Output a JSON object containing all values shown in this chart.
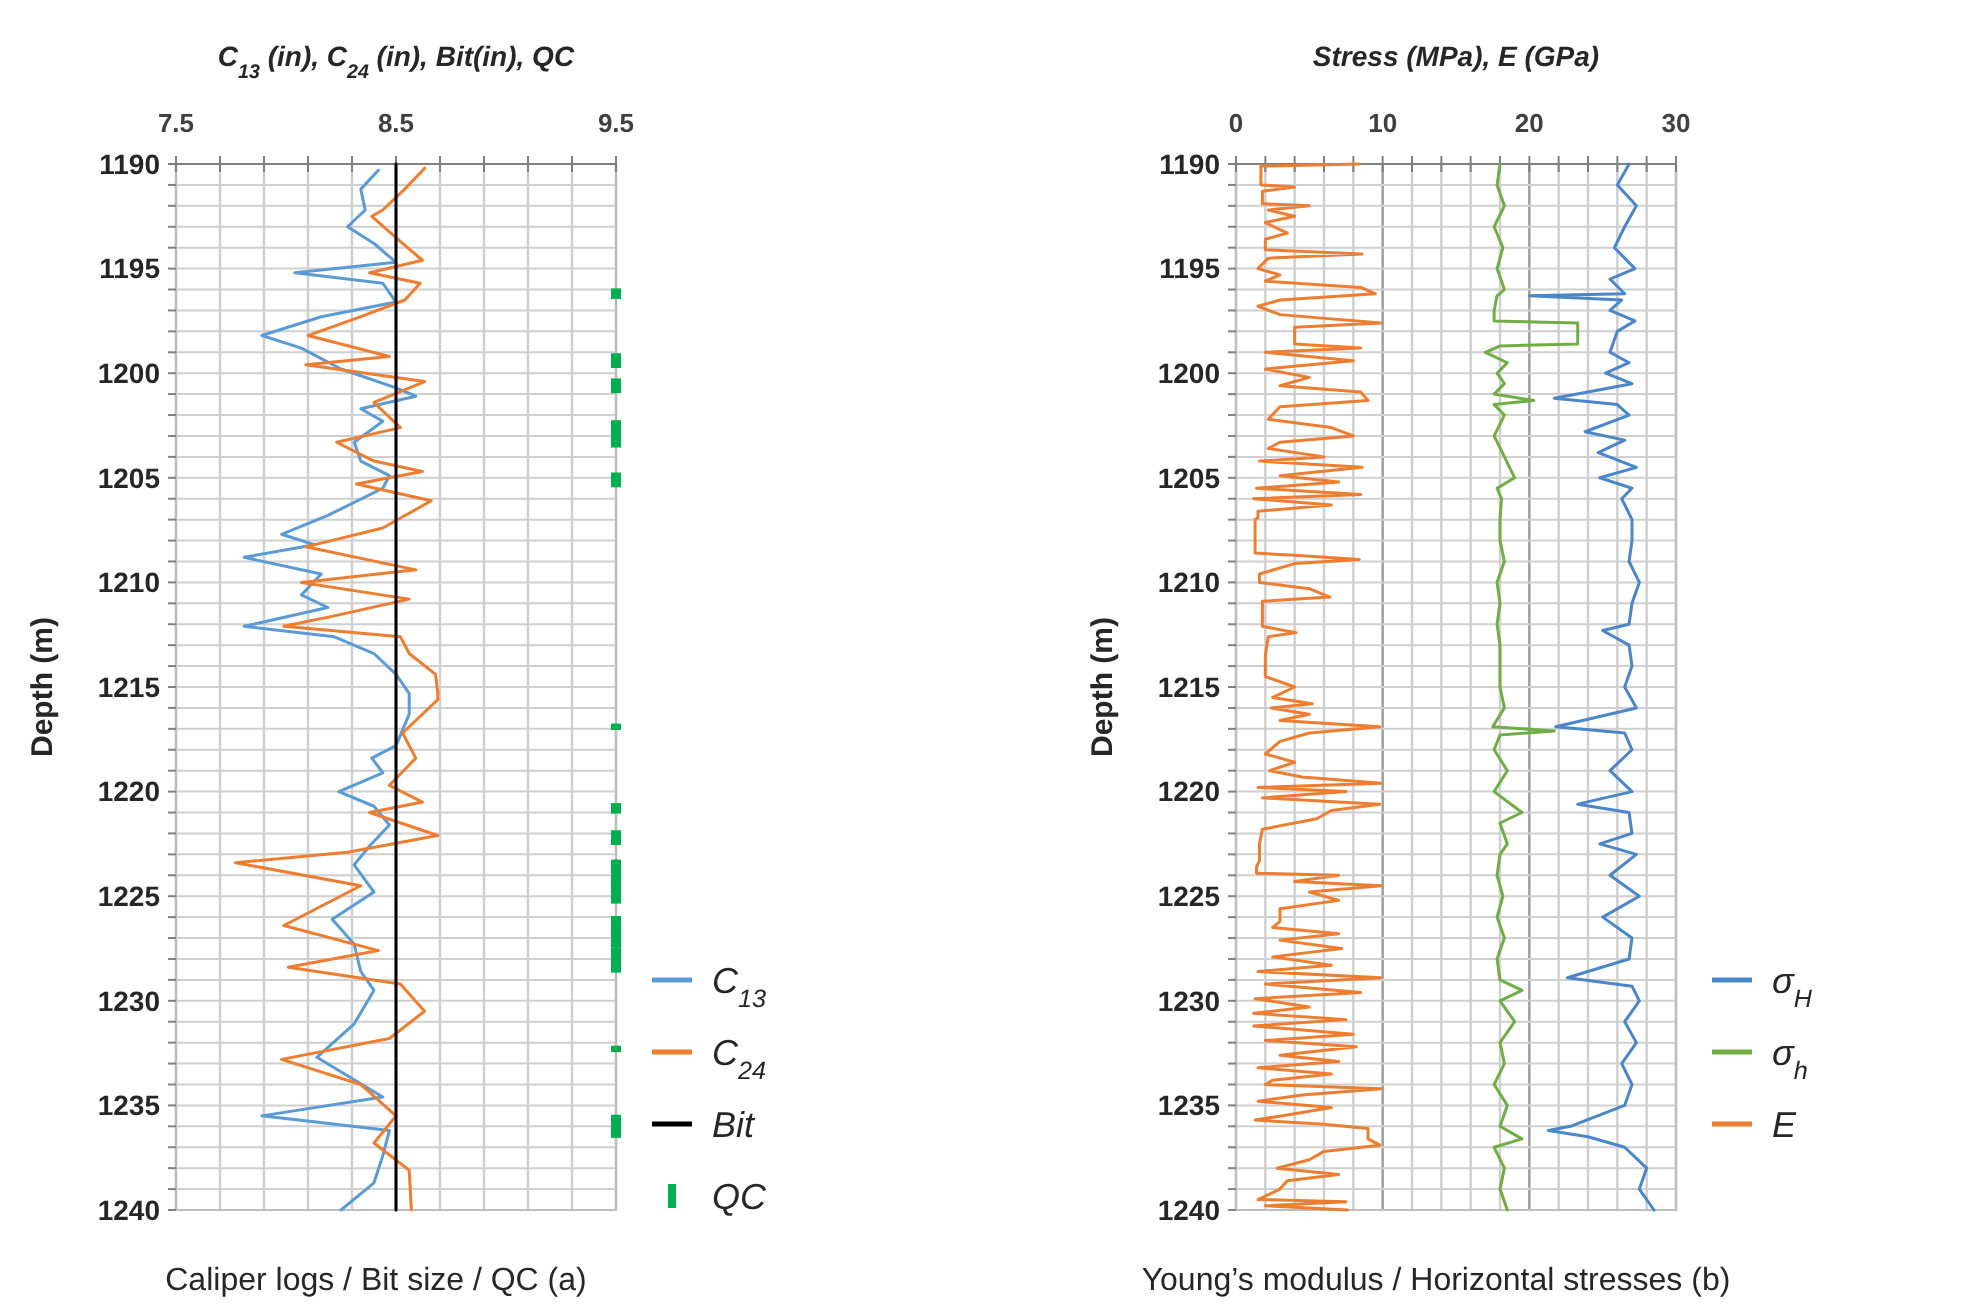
{
  "chart_data": [
    {
      "type": "line",
      "title": "C$_{13}$ (in), C$_{24}$ (in), Bit(in), QC",
      "ylabel": "Depth (m)",
      "xlabel": "Caliper logs / Bit size / QC (a)",
      "xlim": [
        7.5,
        9.5
      ],
      "ylim": [
        1240,
        1190
      ],
      "xticks": [
        7.5,
        {
          "value": 7.7,
          "label": null
        },
        {
          "value": 7.9,
          "label": null
        },
        {
          "value": 8.1,
          "label": null
        },
        {
          "value": 8.3,
          "label": null
        },
        8.5,
        {
          "value": 8.7,
          "label": null
        },
        {
          "value": 8.9,
          "label": null
        },
        {
          "value": 9.1,
          "label": null
        },
        {
          "value": 9.3,
          "label": null
        },
        9.5
      ],
      "yticks": [
        1190,
        {
          "value": 1191,
          "label": null
        },
        {
          "value": 1192,
          "label": null
        },
        {
          "value": 1193,
          "label": null
        },
        {
          "value": 1194,
          "label": null
        },
        1195,
        {
          "value": 1196,
          "label": null
        },
        {
          "value": 1197,
          "label": null
        },
        {
          "value": 1198,
          "label": null
        },
        {
          "value": 1199,
          "label": null
        },
        1200,
        {
          "value": 1201,
          "label": null
        },
        {
          "value": 1202,
          "label": null
        },
        {
          "value": 1203,
          "label": null
        },
        {
          "value": 1204,
          "label": null
        },
        1205,
        {
          "value": 1206,
          "label": null
        },
        {
          "value": 1207,
          "label": null
        },
        {
          "value": 1208,
          "label": null
        },
        {
          "value": 1209,
          "label": null
        },
        1210,
        {
          "value": 1211,
          "label": null
        },
        {
          "value": 1212,
          "label": null
        },
        {
          "value": 1213,
          "label": null
        },
        {
          "value": 1214,
          "label": null
        },
        1215,
        {
          "value": 1216,
          "label": null
        },
        {
          "value": 1217,
          "label": null
        },
        {
          "value": 1218,
          "label": null
        },
        {
          "value": 1219,
          "label": null
        },
        1220,
        {
          "value": 1221,
          "label": null
        },
        {
          "value": 1222,
          "label": null
        },
        {
          "value": 1223,
          "label": null
        },
        {
          "value": 1224,
          "label": null
        },
        1225,
        {
          "value": 1226,
          "label": null
        },
        {
          "value": 1227,
          "label": null
        },
        {
          "value": 1228,
          "label": null
        },
        {
          "value": 1229,
          "label": null
        },
        1230,
        {
          "value": 1231,
          "label": null
        },
        {
          "value": 1232,
          "label": null
        },
        {
          "value": 1233,
          "label": null
        },
        {
          "value": 1234,
          "label": null
        },
        1235,
        {
          "value": 1236,
          "label": null
        },
        {
          "value": 1237,
          "label": null
        },
        {
          "value": 1238,
          "label": null
        },
        {
          "value": 1239,
          "label": null
        },
        1240
      ],
      "grid": true,
      "legend": "right",
      "series": [
        {
          "name": "C$_{13}$",
          "color": "#5b9bd5",
          "x": [
            8.42,
            8.34,
            8.36,
            8.28,
            8.4,
            8.5,
            8.04,
            8.44,
            8.5,
            8.16,
            7.89,
            8.07,
            8.25,
            8.5,
            8.59,
            8.34,
            8.44,
            8.31,
            8.34,
            8.47,
            8.44,
            8.19,
            7.98,
            8.13,
            7.81,
            8.16,
            8.07,
            8.19,
            7.81,
            8.22,
            8.4,
            8.5,
            8.56,
            8.56,
            8.5,
            8.39,
            8.44,
            8.24,
            8.4,
            8.47,
            8.38,
            8.31,
            8.4,
            8.21,
            8.31,
            8.34,
            8.4,
            8.31,
            8.14,
            8.44,
            7.89,
            8.47,
            8.44,
            8.4,
            8.25
          ],
          "values": [
            1190.3,
            1191.2,
            1192.2,
            1193.0,
            1193.8,
            1194.7,
            1195.2,
            1195.7,
            1196.6,
            1197.3,
            1198.2,
            1198.8,
            1199.8,
            1200.7,
            1201.1,
            1201.7,
            1202.3,
            1203.3,
            1204.2,
            1204.9,
            1205.5,
            1206.8,
            1207.7,
            1208.2,
            1208.8,
            1209.6,
            1210.6,
            1211.2,
            1212.1,
            1212.6,
            1213.4,
            1214.4,
            1215.3,
            1216.3,
            1217.8,
            1218.4,
            1219.1,
            1220.0,
            1220.7,
            1221.6,
            1222.6,
            1223.5,
            1224.8,
            1226.1,
            1227.3,
            1228.6,
            1229.5,
            1231.1,
            1232.7,
            1234.6,
            1235.5,
            1236.2,
            1237.4,
            1238.7,
            1240.0
          ]
        },
        {
          "name": "C$_{24}$",
          "color": "#ed7d31",
          "x": [
            8.63,
            8.54,
            8.44,
            8.39,
            8.53,
            8.62,
            8.38,
            8.61,
            8.54,
            8.34,
            8.1,
            8.47,
            8.09,
            8.63,
            8.4,
            8.52,
            8.23,
            8.4,
            8.62,
            8.32,
            8.66,
            8.44,
            8.09,
            8.59,
            8.07,
            8.56,
            8.22,
            7.99,
            8.52,
            8.56,
            8.68,
            8.69,
            8.69,
            8.53,
            8.59,
            8.47,
            8.62,
            8.38,
            8.69,
            8.28,
            7.77,
            8.34,
            7.99,
            8.42,
            8.01,
            8.52,
            8.63,
            8.47,
            7.98,
            8.34,
            8.5,
            8.4,
            8.56,
            8.57
          ],
          "values": [
            1190.2,
            1191.2,
            1192.2,
            1192.5,
            1193.8,
            1194.6,
            1195.2,
            1195.7,
            1196.5,
            1197.3,
            1198.2,
            1199.2,
            1199.6,
            1200.4,
            1201.4,
            1202.6,
            1203.3,
            1204.2,
            1204.7,
            1205.3,
            1206.1,
            1207.4,
            1208.3,
            1209.4,
            1210.0,
            1210.8,
            1211.6,
            1212.1,
            1212.6,
            1213.4,
            1214.4,
            1215.3,
            1215.6,
            1217.2,
            1218.4,
            1219.7,
            1220.5,
            1221.0,
            1222.1,
            1222.9,
            1223.4,
            1224.5,
            1226.4,
            1227.6,
            1228.4,
            1229.2,
            1230.5,
            1231.8,
            1232.8,
            1234.0,
            1235.5,
            1236.8,
            1238.1,
            1240.0
          ]
        },
        {
          "name": "Bit",
          "color": "#000000",
          "x": [
            8.5,
            8.5
          ],
          "values": [
            1190,
            1240
          ]
        },
        {
          "name": "QC",
          "type": "scatter",
          "marker": "square",
          "color": "#00b050",
          "x": [
            9.5,
            9.5,
            9.5,
            9.5,
            9.5,
            9.5,
            9.5,
            9.5,
            9.5,
            9.5,
            9.5,
            9.5,
            9.5,
            9.5,
            9.5,
            9.5,
            9.5,
            9.5,
            9.5,
            9.5,
            9.5,
            9.5,
            9.5,
            9.5,
            9.5,
            9.5,
            9.5,
            9.5,
            9.5,
            9.5,
            9.5,
            9.5,
            9.5,
            9.5,
            9.5,
            9.5,
            9.5,
            9.5,
            9.5,
            9.5,
            9.5,
            9.5,
            9.5,
            9.5,
            9.5,
            9.5,
            9.5,
            9.5,
            9.5,
            9.5,
            9.5
          ],
          "values": [
            1196.1,
            1196.3,
            1199.2,
            1199.4,
            1199.6,
            1200.4,
            1200.6,
            1200.8,
            1202.4,
            1202.6,
            1202.8,
            1203.0,
            1203.2,
            1203.4,
            1204.9,
            1205.1,
            1205.3,
            1216.9,
            1220.7,
            1220.9,
            1222.0,
            1222.2,
            1222.4,
            1223.4,
            1223.6,
            1223.8,
            1224.0,
            1224.2,
            1224.4,
            1224.6,
            1224.8,
            1225.0,
            1225.2,
            1226.1,
            1226.3,
            1226.5,
            1226.7,
            1226.9,
            1227.1,
            1227.3,
            1227.6,
            1227.8,
            1228.0,
            1228.3,
            1228.5,
            1232.3,
            1235.6,
            1235.8,
            1236.0,
            1236.2,
            1236.4
          ]
        }
      ]
    },
    {
      "type": "line",
      "title": "Stress (MPa), E (GPa)",
      "ylabel": "Depth (m)",
      "xlabel": "Young’s modulus / Horizontal stresses (b)",
      "xlim": [
        0,
        30
      ],
      "ylim": [
        1240,
        1190
      ],
      "xticks": [
        0,
        {
          "value": 2,
          "label": null
        },
        {
          "value": 4,
          "label": null
        },
        {
          "value": 6,
          "label": null
        },
        {
          "value": 8,
          "label": null
        },
        10,
        {
          "value": 12,
          "label": null
        },
        {
          "value": 14,
          "label": null
        },
        {
          "value": 16,
          "label": null
        },
        {
          "value": 18,
          "label": null
        },
        20,
        {
          "value": 22,
          "label": null
        },
        {
          "value": 24,
          "label": null
        },
        {
          "value": 26,
          "label": null
        },
        {
          "value": 28,
          "label": null
        },
        30
      ],
      "yticks": [
        1190,
        {
          "value": 1191,
          "label": null
        },
        {
          "value": 1192,
          "label": null
        },
        {
          "value": 1193,
          "label": null
        },
        {
          "value": 1194,
          "label": null
        },
        1195,
        {
          "value": 1196,
          "label": null
        },
        {
          "value": 1197,
          "label": null
        },
        {
          "value": 1198,
          "label": null
        },
        {
          "value": 1199,
          "label": null
        },
        1200,
        {
          "value": 1201,
          "label": null
        },
        {
          "value": 1202,
          "label": null
        },
        {
          "value": 1203,
          "label": null
        },
        {
          "value": 1204,
          "label": null
        },
        1205,
        {
          "value": 1206,
          "label": null
        },
        {
          "value": 1207,
          "label": null
        },
        {
          "value": 1208,
          "label": null
        },
        {
          "value": 1209,
          "label": null
        },
        1210,
        {
          "value": 1211,
          "label": null
        },
        {
          "value": 1212,
          "label": null
        },
        {
          "value": 1213,
          "label": null
        },
        {
          "value": 1214,
          "label": null
        },
        1215,
        {
          "value": 1216,
          "label": null
        },
        {
          "value": 1217,
          "label": null
        },
        {
          "value": 1218,
          "label": null
        },
        {
          "value": 1219,
          "label": null
        },
        1220,
        {
          "value": 1221,
          "label": null
        },
        {
          "value": 1222,
          "label": null
        },
        {
          "value": 1223,
          "label": null
        },
        {
          "value": 1224,
          "label": null
        },
        1225,
        {
          "value": 1226,
          "label": null
        },
        {
          "value": 1227,
          "label": null
        },
        {
          "value": 1228,
          "label": null
        },
        {
          "value": 1229,
          "label": null
        },
        1230,
        {
          "value": 1231,
          "label": null
        },
        {
          "value": 1232,
          "label": null
        },
        {
          "value": 1233,
          "label": null
        },
        {
          "value": 1234,
          "label": null
        },
        1235,
        {
          "value": 1236,
          "label": null
        },
        {
          "value": 1237,
          "label": null
        },
        {
          "value": 1238,
          "label": null
        },
        {
          "value": 1239,
          "label": null
        },
        1240
      ],
      "grid": true,
      "legend": "right",
      "series": [
        {
          "name": "σ$_{H}$",
          "color": "#4a86c8",
          "x": [
            26.8,
            26.0,
            27.3,
            26.5,
            25.8,
            27.2,
            25.5,
            26.5,
            20.0,
            26.3,
            25.5,
            27.2,
            26.0,
            25.5,
            26.8,
            25.2,
            27.0,
            21.7,
            26.0,
            26.8,
            23.8,
            26.5,
            24.7,
            27.3,
            24.8,
            27.0,
            26.3,
            27.0,
            27.0,
            26.8,
            27.5,
            27.0,
            26.8,
            25.0,
            26.8,
            27.0,
            26.5,
            27.3,
            21.8,
            26.5,
            27.0,
            25.5,
            27.0,
            23.3,
            26.8,
            27.0,
            24.8,
            27.3,
            25.5,
            27.5,
            25.0,
            27.0,
            26.8,
            22.6,
            27.0,
            27.5,
            26.5,
            27.3,
            26.3,
            27.0,
            26.5,
            22.8,
            21.3,
            24.0,
            26.5,
            28.0,
            27.5,
            28.5
          ],
          "values": [
            1190,
            1191,
            1192,
            1193,
            1194,
            1195,
            1195.5,
            1196.2,
            1196.3,
            1196.5,
            1197,
            1197.5,
            1198,
            1199,
            1199.5,
            1200,
            1200.5,
            1201.2,
            1201.5,
            1202,
            1202.8,
            1203.2,
            1203.8,
            1204.5,
            1205,
            1205.5,
            1206,
            1207,
            1208,
            1209,
            1210,
            1211,
            1212,
            1212.3,
            1213,
            1214,
            1215,
            1216,
            1216.9,
            1217.2,
            1218,
            1219,
            1220,
            1220.6,
            1221,
            1222,
            1222.5,
            1223,
            1224,
            1225,
            1226,
            1227,
            1228,
            1228.9,
            1229.3,
            1230,
            1231,
            1232,
            1233,
            1234,
            1235,
            1236.0,
            1236.2,
            1236.5,
            1237,
            1238,
            1239,
            1240
          ]
        },
        {
          "name": "σ$_{h}$",
          "color": "#70ad47",
          "x": [
            18.0,
            17.8,
            18.3,
            17.6,
            18.2,
            17.8,
            18.3,
            17.8,
            17.6,
            17.6,
            23.3,
            23.3,
            18.0,
            17.0,
            18.5,
            17.8,
            18.3,
            17.6,
            20.3,
            17.6,
            18.3,
            17.6,
            18.3,
            19.0,
            17.8,
            18.1,
            18.0,
            18.0,
            18.3,
            17.8,
            18.0,
            17.8,
            18.0,
            18.0,
            18.0,
            18.3,
            17.5,
            21.7,
            18.0,
            17.6,
            18.5,
            17.6,
            19.5,
            18.0,
            18.5,
            18.0,
            17.8,
            18.2,
            17.8,
            18.3,
            17.8,
            18.0,
            19.5,
            18.0,
            19.0,
            18.0,
            18.3,
            17.6,
            18.5,
            18.0,
            19.5,
            17.6,
            18.3,
            18.0,
            18.5
          ],
          "values": [
            1190,
            1191,
            1192,
            1193,
            1194,
            1195,
            1196,
            1196.3,
            1197.0,
            1197.5,
            1197.6,
            1198.6,
            1198.7,
            1199.0,
            1199.5,
            1200,
            1200.5,
            1201,
            1201.3,
            1201.5,
            1202,
            1203,
            1204,
            1205,
            1205.5,
            1206,
            1207,
            1208,
            1209,
            1210,
            1211,
            1212,
            1213,
            1214,
            1215,
            1216,
            1216.9,
            1217.1,
            1217.3,
            1218,
            1219,
            1220,
            1221,
            1221.5,
            1222.5,
            1223,
            1224,
            1225,
            1226,
            1227,
            1228,
            1229,
            1229.5,
            1230,
            1231,
            1232,
            1233,
            1234,
            1235,
            1236,
            1236.6,
            1237,
            1238,
            1239,
            1240
          ]
        },
        {
          "name": "E",
          "color": "#ed7d31",
          "x": [
            8.4,
            1.7,
            1.7,
            4.0,
            1.8,
            1.8,
            5.0,
            2.2,
            4.0,
            2.0,
            3.5,
            2.0,
            2.0,
            8.6,
            2.2,
            1.5,
            3.0,
            2.0,
            8.5,
            9.5,
            3.0,
            1.5,
            3.0,
            9.9,
            4.0,
            4.0,
            8.5,
            2.0,
            8.0,
            2.0,
            5.0,
            3.0,
            8.5,
            9.0,
            3.0,
            2.2,
            6.5,
            8.0,
            3.0,
            2.2,
            6.0,
            1.6,
            8.6,
            3.0,
            7.0,
            1.4,
            8.5,
            1.2,
            6.5,
            1.5,
            1.5,
            1.3,
            1.3,
            4.0,
            8.4,
            4.0,
            1.6,
            1.6,
            5.0,
            6.4,
            1.8,
            1.8,
            4.1,
            2.2,
            2.0,
            2.0,
            4.0,
            2.5,
            5.2,
            2.4,
            5.0,
            3.0,
            9.8,
            5.0,
            3.0,
            2.0,
            4.0,
            2.3,
            4.5,
            9.9,
            1.5,
            7.5,
            1.8,
            9.8,
            6.5,
            5.5,
            1.8,
            1.6,
            1.6,
            1.4,
            1.4,
            7.0,
            4.0,
            9.9,
            5.0,
            7.0,
            3.0,
            3.0,
            2.5,
            7.0,
            3.0,
            7.2,
            2.5,
            6.5,
            1.5,
            9.9,
            2.0,
            8.5,
            1.3,
            5.0,
            1.2,
            7.5,
            1.2,
            8.0,
            2.0,
            8.2,
            3.0,
            7.0,
            1.5,
            6.5,
            2.5,
            2.0,
            9.9,
            4.5,
            1.5,
            6.5,
            4.0,
            1.3,
            6.0,
            9.0,
            9.0,
            9.8,
            6.0,
            5.0,
            2.8,
            7.0,
            3.5,
            3.0,
            1.5,
            7.5,
            2.0,
            7.6
          ],
          "values": [
            1190.0,
            1190.1,
            1191.0,
            1191.1,
            1191.3,
            1191.9,
            1192.0,
            1192.2,
            1192.5,
            1192.8,
            1193.3,
            1193.6,
            1194.1,
            1194.3,
            1194.5,
            1195.0,
            1195.3,
            1195.6,
            1195.9,
            1196.2,
            1196.5,
            1196.8,
            1197.2,
            1197.6,
            1197.8,
            1198.6,
            1198.8,
            1199.0,
            1199.4,
            1199.8,
            1200.2,
            1200.6,
            1200.9,
            1201.3,
            1201.6,
            1202.2,
            1202.6,
            1203.0,
            1203.3,
            1203.6,
            1204.0,
            1204.2,
            1204.5,
            1204.9,
            1205.2,
            1205.5,
            1205.8,
            1206.0,
            1206.3,
            1206.6,
            1206.9,
            1207.0,
            1208.6,
            1208.7,
            1208.9,
            1209.1,
            1209.6,
            1210.0,
            1210.3,
            1210.7,
            1210.9,
            1212.1,
            1212.4,
            1212.6,
            1213.5,
            1214.5,
            1215.0,
            1215.5,
            1215.8,
            1216.0,
            1216.3,
            1216.6,
            1216.9,
            1217.2,
            1217.6,
            1218.2,
            1218.6,
            1219.0,
            1219.3,
            1219.6,
            1219.8,
            1220.0,
            1220.3,
            1220.6,
            1220.9,
            1221.3,
            1221.8,
            1222.5,
            1223.3,
            1223.6,
            1223.9,
            1224.0,
            1224.3,
            1224.5,
            1224.8,
            1225.2,
            1225.6,
            1226.2,
            1226.5,
            1226.8,
            1227.1,
            1227.5,
            1227.9,
            1228.3,
            1228.6,
            1228.9,
            1229.2,
            1229.6,
            1229.9,
            1230.3,
            1230.6,
            1230.9,
            1231.2,
            1231.6,
            1231.9,
            1232.2,
            1232.6,
            1232.9,
            1233.2,
            1233.5,
            1233.8,
            1234.0,
            1234.2,
            1234.5,
            1234.8,
            1235.1,
            1235.4,
            1235.7,
            1235.9,
            1236.1,
            1236.6,
            1236.9,
            1237.2,
            1237.6,
            1238.0,
            1238.3,
            1238.6,
            1239.0,
            1239.5,
            1239.6,
            1239.8,
            1240.0
          ]
        }
      ]
    }
  ]
}
